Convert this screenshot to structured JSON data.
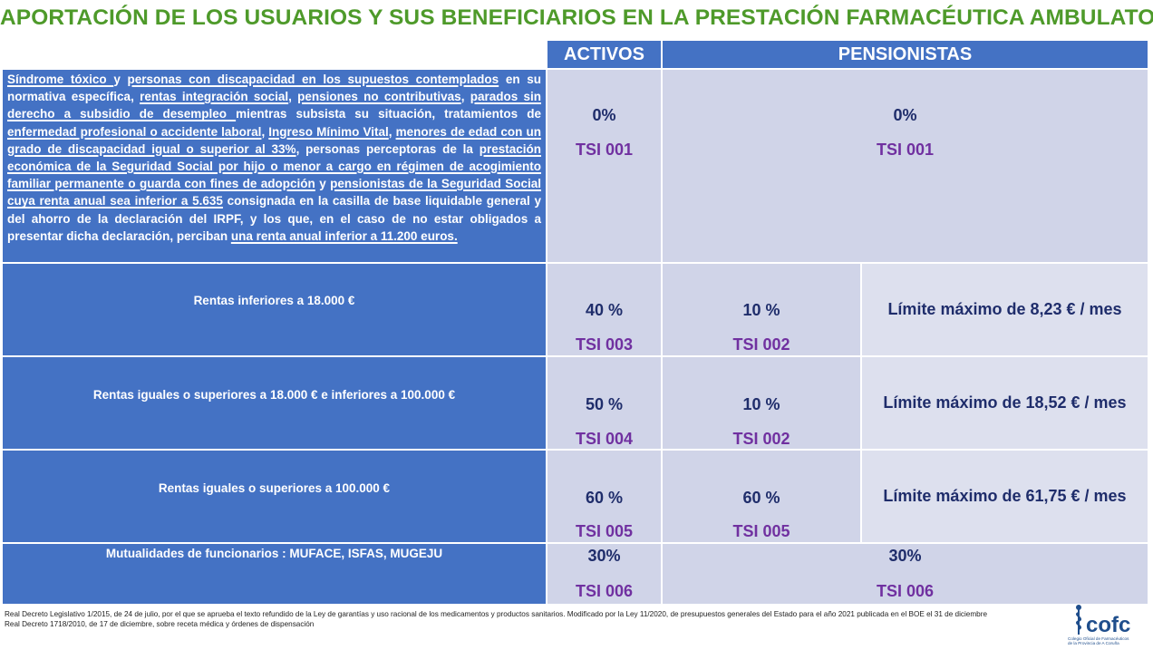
{
  "title": "APORTACIÓN DE LOS USUARIOS Y SUS BENEFICIARIOS EN LA PRESTACIÓN FARMACÉUTICA AMBULATORIA",
  "headers": {
    "activos": "ACTIVOS",
    "pensionistas": "PENSIONISTAS"
  },
  "row1": {
    "segments": [
      {
        "t": "Síndrome tóxico ",
        "u": true
      },
      {
        "t": " y ",
        "u": false
      },
      {
        "t": "personas con discapacidad en los supuestos contemplados",
        "u": true
      },
      {
        "t": " en su normativa específica, ",
        "u": false
      },
      {
        "t": "rentas integración social",
        "u": true
      },
      {
        "t": ", ",
        "u": false
      },
      {
        "t": "pensiones no contributivas",
        "u": true
      },
      {
        "t": ", ",
        "u": false
      },
      {
        "t": "parados sin derecho a subsidio de desempleo ",
        "u": true
      },
      {
        "t": "mientras subsista su situación, tratamientos de ",
        "u": false
      },
      {
        "t": "enfermedad profesional o accidente laboral",
        "u": true
      },
      {
        "t": ", ",
        "u": false
      },
      {
        "t": "Ingreso Mínimo Vital",
        "u": true
      },
      {
        "t": ", ",
        "u": false
      },
      {
        "t": "menores de edad con un grado de discapacidad igual o superior al 33%",
        "u": true
      },
      {
        "t": ", personas perceptoras de la ",
        "u": false
      },
      {
        "t": "prestación económica de la Seguridad Social por hijo o menor a cargo en régimen de acogimiento familiar permanente o guarda con fines de adopción",
        "u": true
      },
      {
        "t": " y ",
        "u": false
      },
      {
        "t": "pensionistas de la Seguridad Social cuya renta anual sea inferior a 5.635",
        "u": true
      },
      {
        "t": " consignada en la casilla de base liquidable general y del ahorro de la declaración del IRPF, y los que,  en el caso de no estar obligados a presentar dicha declaración, perciban ",
        "u": false
      },
      {
        "t": "una renta anual inferior a 11.200 euros.",
        "u": true
      }
    ],
    "activos_pct": "0%",
    "activos_tsi": "TSI 001",
    "pens_pct": "0%",
    "pens_tsi": "TSI 001"
  },
  "row2": {
    "label": "Rentas inferiores a 18.000 €",
    "activos_pct": "40 %",
    "activos_tsi": "TSI 003",
    "pens_pct": "10 %",
    "pens_tsi": "TSI 002",
    "limit": "Límite máximo de 8,23 € / mes"
  },
  "row3": {
    "label": "Rentas iguales o superiores a 18.000 € e inferiores a 100.000 €",
    "activos_pct": "50 %",
    "activos_tsi": "TSI 004",
    "pens_pct": "10 %",
    "pens_tsi": "TSI 002",
    "limit": "Límite máximo de 18,52 € / mes"
  },
  "row4": {
    "label": "Rentas iguales o superiores a 100.000 €",
    "activos_pct": "60 %",
    "activos_tsi": "TSI 005",
    "pens_pct": "60 %",
    "pens_tsi": "TSI 005",
    "limit": "Límite máximo de 61,75 € / mes"
  },
  "row5": {
    "label": "Mutualidades de funcionarios : MUFACE, ISFAS, MUGEJU",
    "activos_pct": "30%",
    "activos_tsi": "TSI 006",
    "pens_pct": "30%",
    "pens_tsi": "TSI 006"
  },
  "footer": {
    "line1": "Real Decreto Legislativo 1/2015, de 24 de julio, por el que se aprueba el texto refundido de la Ley de garantías y uso racional de los medicamentos y productos sanitarios. Modificado por la Ley 11/2020, de presupuestos generales del Estado para el año 2021 publicada en el BOE el 31 de diciembre",
    "line2": "Real Decreto 1718/2010, de 17 de diciembre, sobre receta médica y órdenes de dispensación"
  },
  "logo": {
    "text": "cofc",
    "caption1": "Colegio Oficial de Farmacéuticos",
    "caption2": "de la Provincia de A Coruña"
  },
  "colors": {
    "title": "#4e9a2a",
    "header_blue": "#4472c4",
    "lavender": "#d0d4e8",
    "pct_navy": "#1f2d6b",
    "tsi_purple": "#7030a0"
  }
}
